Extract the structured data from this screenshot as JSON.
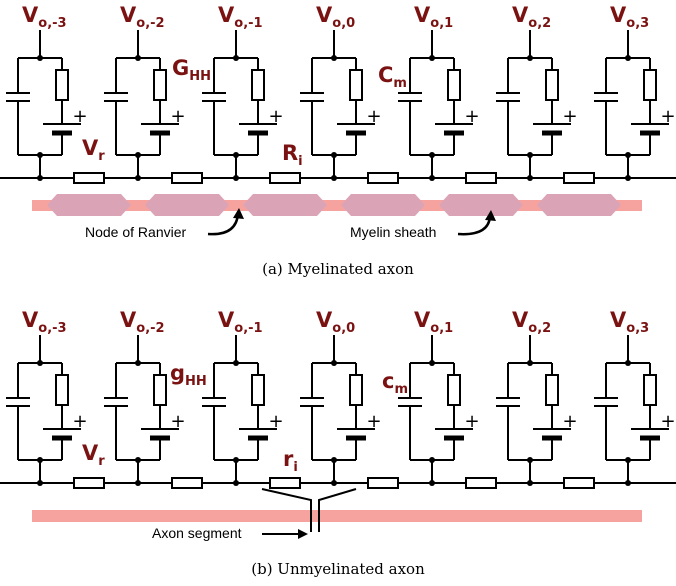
{
  "panels": [
    {
      "node_labels": [
        {
          "main": "V",
          "sub": "o,-3"
        },
        {
          "main": "V",
          "sub": "o,-2"
        },
        {
          "main": "V",
          "sub": "o,-1"
        },
        {
          "main": "V",
          "sub": "o,0"
        },
        {
          "main": "V",
          "sub": "o,1"
        },
        {
          "main": "V",
          "sub": "o,2"
        },
        {
          "main": "V",
          "sub": "o,3"
        }
      ],
      "conductance": {
        "main": "G",
        "sub": "HH"
      },
      "capacitance": {
        "main": "C",
        "sub": "m"
      },
      "rest": {
        "main": "V",
        "sub": "r"
      },
      "axial": {
        "main": "R",
        "sub": "i"
      },
      "battery_sign": "+",
      "annotations": [
        "Node of Ranvier",
        "Myelin sheath"
      ],
      "caption": "(a)  Myelinated axon"
    },
    {
      "node_labels": [
        {
          "main": "V",
          "sub": "o,-3"
        },
        {
          "main": "V",
          "sub": "o,-2"
        },
        {
          "main": "V",
          "sub": "o,-1"
        },
        {
          "main": "V",
          "sub": "o,0"
        },
        {
          "main": "V",
          "sub": "o,1"
        },
        {
          "main": "V",
          "sub": "o,2"
        },
        {
          "main": "V",
          "sub": "o,3"
        }
      ],
      "conductance": {
        "main": "g",
        "sub": "HH"
      },
      "capacitance": {
        "main": "c",
        "sub": "m"
      },
      "rest": {
        "main": "V",
        "sub": "r"
      },
      "axial": {
        "main": "r",
        "sub": "i"
      },
      "battery_sign": "+",
      "annotations": [
        "Axon segment"
      ],
      "caption": "(b)  Unmyelinated axon"
    }
  ]
}
